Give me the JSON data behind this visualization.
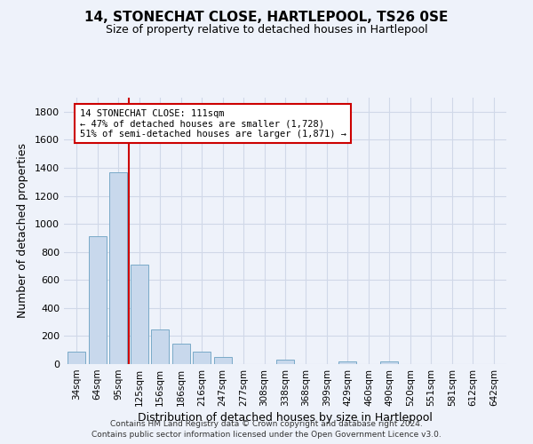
{
  "title": "14, STONECHAT CLOSE, HARTLEPOOL, TS26 0SE",
  "subtitle": "Size of property relative to detached houses in Hartlepool",
  "xlabel": "Distribution of detached houses by size in Hartlepool",
  "ylabel": "Number of detached properties",
  "categories": [
    "34sqm",
    "64sqm",
    "95sqm",
    "125sqm",
    "156sqm",
    "186sqm",
    "216sqm",
    "247sqm",
    "277sqm",
    "308sqm",
    "338sqm",
    "368sqm",
    "399sqm",
    "429sqm",
    "460sqm",
    "490sqm",
    "520sqm",
    "551sqm",
    "581sqm",
    "612sqm",
    "642sqm"
  ],
  "values": [
    90,
    910,
    1370,
    710,
    250,
    145,
    90,
    52,
    0,
    0,
    30,
    0,
    0,
    20,
    0,
    20,
    0,
    0,
    0,
    0,
    0
  ],
  "bar_color": "#c8d8ec",
  "bar_edge_color": "#7aaac8",
  "vline_x": 2.5,
  "vline_color": "#cc0000",
  "annotation_text": "14 STONECHAT CLOSE: 111sqm\n← 47% of detached houses are smaller (1,728)\n51% of semi-detached houses are larger (1,871) →",
  "annotation_box_color": "white",
  "annotation_box_edge": "#cc0000",
  "ylim": [
    0,
    1900
  ],
  "yticks": [
    0,
    200,
    400,
    600,
    800,
    1000,
    1200,
    1400,
    1600,
    1800
  ],
  "footer_line1": "Contains HM Land Registry data © Crown copyright and database right 2024.",
  "footer_line2": "Contains public sector information licensed under the Open Government Licence v3.0.",
  "grid_color": "#d0d8e8",
  "background_color": "#eef2fa"
}
